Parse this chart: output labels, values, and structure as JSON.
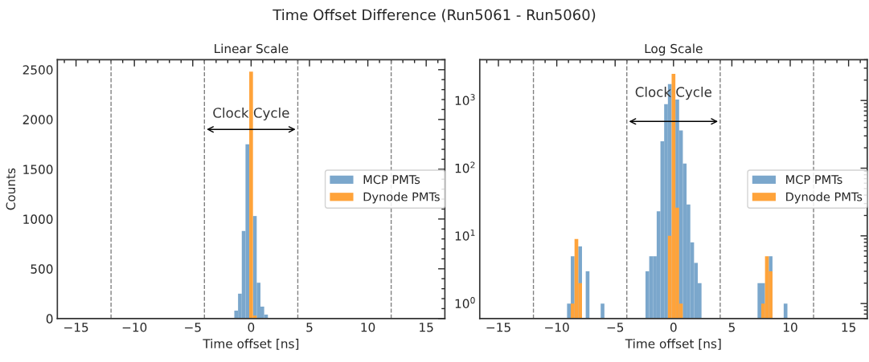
{
  "chart_data": [
    {
      "type": "histogram",
      "title": "Linear Scale",
      "xlabel": "Time offset [ns]",
      "ylabel": "Counts",
      "annotations": [
        "Time Offset Difference (Run5061 - Run5060)",
        {
          "text": "Clock Cycle",
          "x": 0,
          "y": 1900
        }
      ],
      "bins": [
        -9.12,
        -8.8,
        -8.48,
        -8.16,
        -7.84,
        -7.52,
        -7.2,
        -6.88,
        -6.56,
        -6.24,
        -5.92,
        -5.6,
        -5.28,
        -4.96,
        -4.64,
        -4.32,
        -4.0,
        -3.68,
        -3.36,
        -3.04,
        -2.72,
        -2.4,
        -2.08,
        -1.76,
        -1.44,
        -1.12,
        -0.8,
        -0.48,
        -0.16,
        0.16,
        0.48,
        0.8,
        1.12,
        1.44,
        1.76,
        2.08,
        2.4,
        2.72,
        3.04,
        3.36,
        3.68,
        4.0,
        4.32,
        4.64,
        4.96,
        5.28,
        5.6,
        5.92,
        6.24,
        6.56,
        6.88,
        7.2,
        7.52,
        7.84,
        8.16,
        8.48,
        8.8,
        9.12,
        9.44,
        9.76
      ],
      "series": [
        {
          "name": "MCP PMTs",
          "color": "#7ba7cc",
          "values": [
            null,
            null,
            null,
            null,
            null,
            null,
            null,
            null,
            null,
            null,
            null,
            null,
            null,
            null,
            null,
            null,
            null,
            null,
            null,
            null,
            null,
            null,
            null,
            null,
            80,
            250,
            880,
            1750,
            null,
            1030,
            360,
            120,
            40,
            null,
            null,
            null,
            null,
            null,
            null,
            null,
            null,
            null,
            null,
            null,
            null,
            null,
            null,
            null,
            null,
            null,
            null,
            null,
            null,
            null,
            null,
            null,
            null,
            null,
            null
          ]
        },
        {
          "name": "Dynode PMTs",
          "color": "#ffa33a",
          "values": [
            null,
            null,
            null,
            null,
            null,
            null,
            null,
            null,
            null,
            null,
            null,
            null,
            null,
            null,
            null,
            null,
            null,
            null,
            null,
            null,
            null,
            null,
            null,
            null,
            null,
            null,
            null,
            null,
            2480,
            30,
            null,
            null,
            null,
            null,
            null,
            null,
            null,
            null,
            null,
            null,
            null,
            null,
            null,
            null,
            null,
            null,
            null,
            null,
            null,
            null,
            null,
            null,
            null,
            null,
            null,
            null,
            null,
            null,
            null
          ]
        }
      ],
      "xlim": [
        -16.6,
        16.6
      ],
      "xticks": [
        {
          "value": -15,
          "label": "−15"
        },
        {
          "value": -10,
          "label": "−10"
        },
        {
          "value": -5,
          "label": "−5"
        },
        0,
        5,
        10,
        15
      ],
      "ylim": [
        0,
        2600
      ],
      "yticks": [
        0,
        500,
        1000,
        1500,
        2000,
        2500
      ],
      "ref_lines": [
        {
          "axis": "x",
          "value": -12,
          "color": "#808080",
          "line_style": "dashed"
        },
        {
          "axis": "x",
          "value": -4,
          "color": "#808080",
          "line_style": "dashed"
        },
        {
          "axis": "x",
          "value": 4,
          "color": "#808080",
          "line_style": "dashed"
        },
        {
          "axis": "x",
          "value": 12,
          "color": "#808080",
          "line_style": "dashed"
        }
      ],
      "legend": "right",
      "grid": false
    },
    {
      "type": "histogram",
      "title": "Log Scale",
      "xlabel": "Time offset [ns]",
      "log": true,
      "annotations": [
        {
          "text": "Clock Cycle",
          "x": 0,
          "y": 490
        }
      ],
      "bins": [
        -9.12,
        -8.8,
        -8.48,
        -8.16,
        -7.84,
        -7.52,
        -7.2,
        -6.88,
        -6.56,
        -6.24,
        -5.92,
        -5.6,
        -5.28,
        -4.96,
        -4.64,
        -4.32,
        -4.0,
        -3.68,
        -3.36,
        -3.04,
        -2.72,
        -2.4,
        -2.08,
        -1.76,
        -1.44,
        -1.12,
        -0.8,
        -0.48,
        -0.16,
        0.16,
        0.48,
        0.8,
        1.12,
        1.44,
        1.76,
        2.08,
        2.4,
        2.72,
        3.04,
        3.36,
        3.68,
        4.0,
        4.32,
        4.64,
        4.96,
        5.28,
        5.6,
        5.92,
        6.24,
        6.56,
        6.88,
        7.2,
        7.52,
        7.84,
        8.16,
        8.48,
        8.8,
        9.12,
        9.44,
        9.76
      ],
      "series": [
        {
          "name": "MCP PMTs",
          "color": "#7ba7cc",
          "values": [
            1,
            5,
            null,
            7,
            null,
            3,
            null,
            null,
            null,
            1,
            null,
            null,
            null,
            null,
            null,
            null,
            null,
            null,
            null,
            null,
            null,
            3,
            5,
            5,
            23,
            250,
            880,
            1750,
            null,
            1030,
            360,
            117,
            29,
            8,
            4,
            2,
            null,
            null,
            null,
            null,
            null,
            null,
            null,
            null,
            null,
            null,
            null,
            null,
            null,
            null,
            null,
            2,
            2,
            null,
            5,
            null,
            null,
            null,
            1
          ]
        },
        {
          "name": "Dynode PMTs",
          "color": "#ffa33a",
          "values": [
            null,
            1,
            9,
            2,
            null,
            null,
            null,
            null,
            null,
            null,
            null,
            null,
            null,
            null,
            null,
            null,
            null,
            null,
            null,
            null,
            null,
            null,
            null,
            null,
            null,
            null,
            null,
            10,
            2480,
            26,
            1,
            null,
            null,
            null,
            null,
            null,
            null,
            null,
            null,
            null,
            null,
            null,
            null,
            null,
            null,
            null,
            null,
            null,
            null,
            null,
            null,
            null,
            1,
            5,
            3,
            null,
            null,
            null,
            null
          ]
        }
      ],
      "xlim": [
        -16.6,
        16.6
      ],
      "xticks": [
        {
          "value": -15,
          "label": "−15"
        },
        {
          "value": -10,
          "label": "−10"
        },
        {
          "value": -5,
          "label": "−5"
        },
        0,
        5,
        10,
        15
      ],
      "ylim": [
        0.6,
        4000
      ],
      "yticks": [
        {
          "value": 1,
          "label": "10$^{0}$"
        },
        {
          "value": 10,
          "label": "10$^{1}$"
        },
        {
          "value": 100,
          "label": "10$^{2}$"
        },
        {
          "value": 1000,
          "label": "10$^{3}$"
        }
      ],
      "ref_lines": [
        {
          "axis": "x",
          "value": -12,
          "color": "#808080",
          "line_style": "dashed"
        },
        {
          "axis": "x",
          "value": -4,
          "color": "#808080",
          "line_style": "dashed"
        },
        {
          "axis": "x",
          "value": 4,
          "color": "#808080",
          "line_style": "dashed"
        },
        {
          "axis": "x",
          "value": 12,
          "color": "#808080",
          "line_style": "dashed"
        }
      ],
      "legend": "right",
      "grid": false
    }
  ]
}
